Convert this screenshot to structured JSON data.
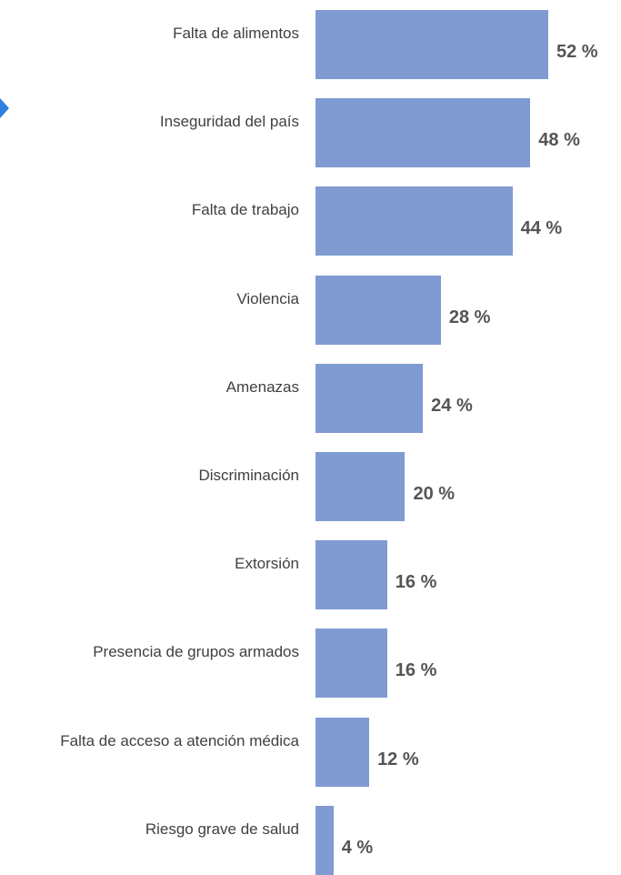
{
  "colors": {
    "bar": "#7f9bd2",
    "label": "#404040",
    "value": "#555555",
    "accent_arrow": "#2e7fe0"
  },
  "icons": {
    "left_edge": "arrow-right-icon"
  },
  "chart_data": {
    "type": "bar",
    "orientation": "horizontal",
    "title": "",
    "xlabel": "",
    "ylabel": "",
    "unit": "%",
    "categories": [
      "Falta de alimentos",
      "Inseguridad del país",
      "Falta de trabajo",
      "Violencia",
      "Amenazas",
      "Discriminación",
      "Extorsión",
      "Presencia de grupos armados",
      "Falta de acceso a atención médica",
      "Riesgo grave de salud"
    ],
    "values": [
      52,
      48,
      44,
      28,
      24,
      20,
      16,
      16,
      12,
      4
    ],
    "value_labels": [
      "52 %",
      "48 %",
      "44 %",
      "28 %",
      "24 %",
      "20 %",
      "16 %",
      "16 %",
      "12 %",
      "4 %"
    ],
    "xlim": [
      0,
      52
    ],
    "grid": false,
    "legend": "none"
  }
}
